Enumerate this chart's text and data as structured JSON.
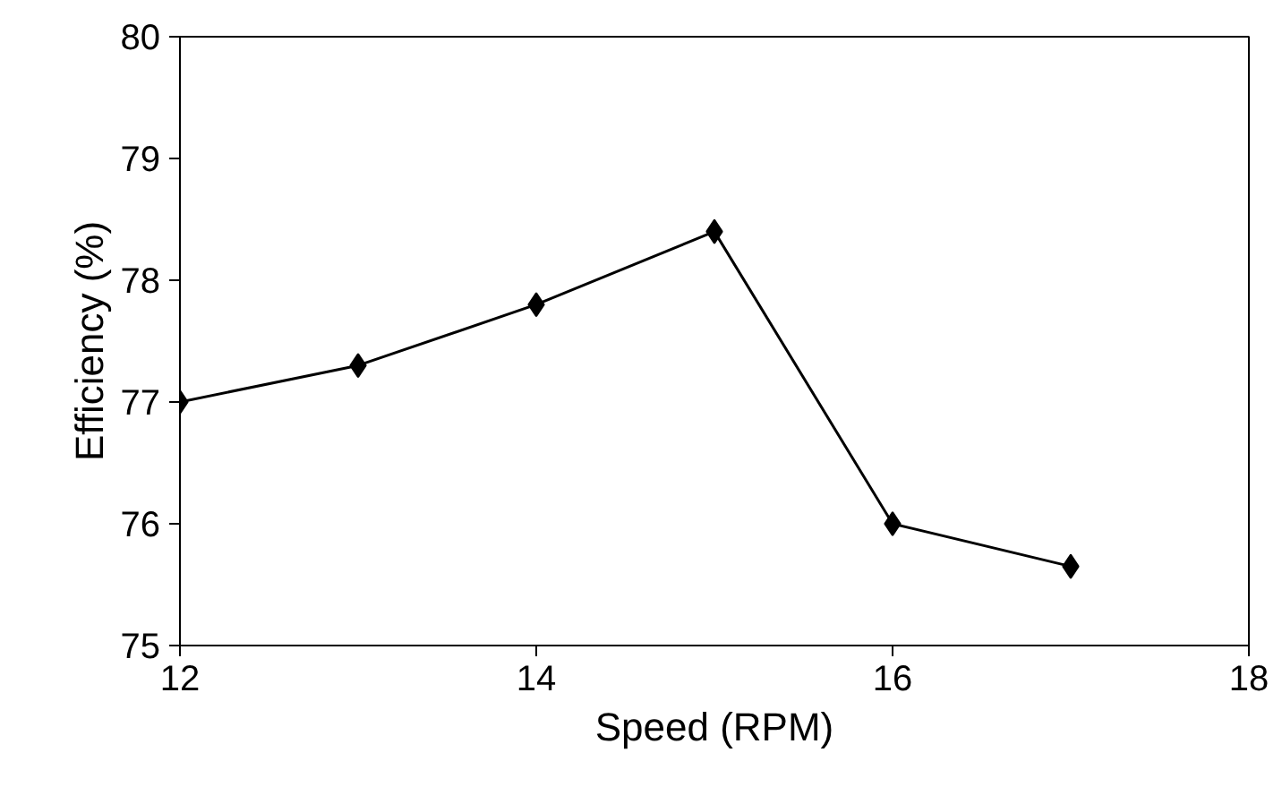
{
  "chart_data": {
    "type": "line",
    "xlabel": "Speed (RPM)",
    "ylabel": "Efficiency (%)",
    "x": [
      12,
      13,
      14,
      15,
      16,
      17
    ],
    "series": [
      {
        "color": "#000000",
        "values": [
          77.0,
          77.3,
          77.8,
          78.4,
          76.0,
          75.65
        ]
      }
    ],
    "xlim": [
      12,
      18
    ],
    "xticks": [
      12,
      14,
      16,
      18
    ],
    "ylim": [
      75,
      80
    ],
    "yticks": [
      75,
      76,
      77,
      78,
      79,
      80
    ],
    "grid": false,
    "marker": "diamond",
    "line_style": "solid"
  }
}
